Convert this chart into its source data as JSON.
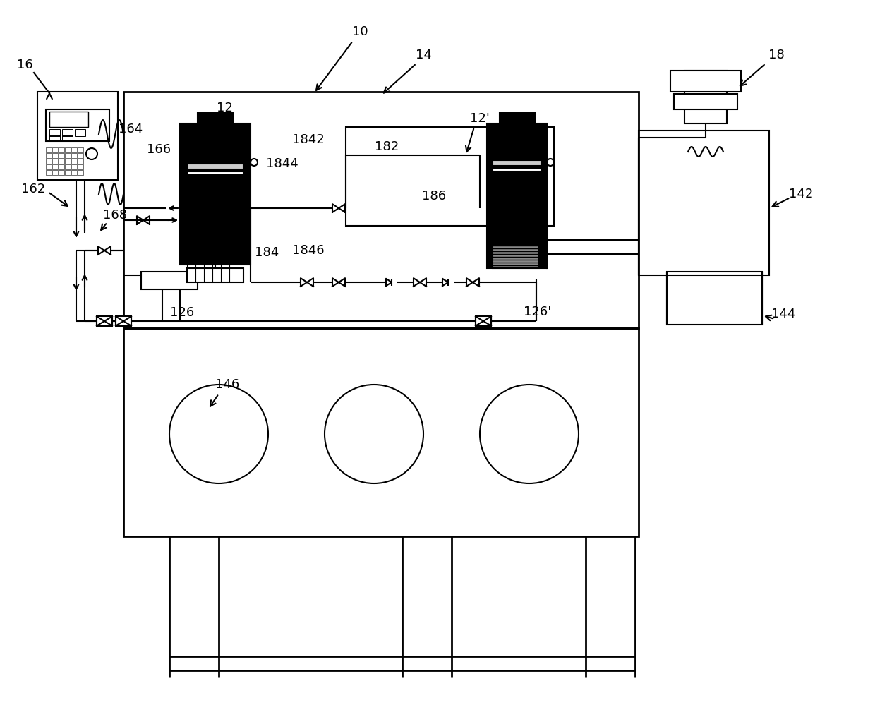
{
  "bg_color": "#ffffff",
  "lc": "#000000",
  "lw": 1.5,
  "tlw": 2.0,
  "fs": 13
}
